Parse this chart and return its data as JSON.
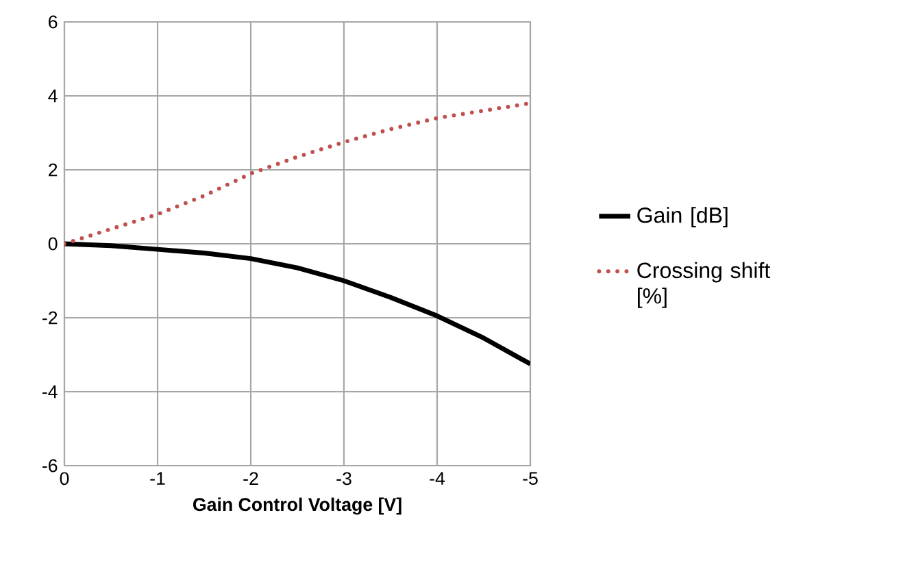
{
  "chart_data": {
    "type": "line",
    "xlabel": "Gain Control Voltage [V]",
    "x": [
      0,
      -0.5,
      -1,
      -1.5,
      -2,
      -2.5,
      -3,
      -3.5,
      -4,
      -4.5,
      -5
    ],
    "series": [
      {
        "name": "Gain [dB]",
        "color": "#000000",
        "line_style": "solid",
        "values": [
          0,
          -0.05,
          -0.15,
          -0.25,
          -0.4,
          -0.65,
          -1.0,
          -1.45,
          -1.95,
          -2.55,
          -3.25
        ]
      },
      {
        "name": "Crossing shift [%]",
        "color": "#c0504d",
        "line_style": "dotted",
        "values": [
          0,
          0.4,
          0.8,
          1.3,
          1.9,
          2.35,
          2.75,
          3.1,
          3.4,
          3.6,
          3.8
        ]
      }
    ],
    "xlim": [
      0,
      -5
    ],
    "xticks": [
      0,
      -1,
      -2,
      -3,
      -4,
      -5
    ],
    "ylim": [
      -6,
      6
    ],
    "yticks": [
      -6,
      -4,
      -2,
      0,
      2,
      4,
      6
    ],
    "grid": true,
    "legend": "right",
    "marker": "none"
  }
}
